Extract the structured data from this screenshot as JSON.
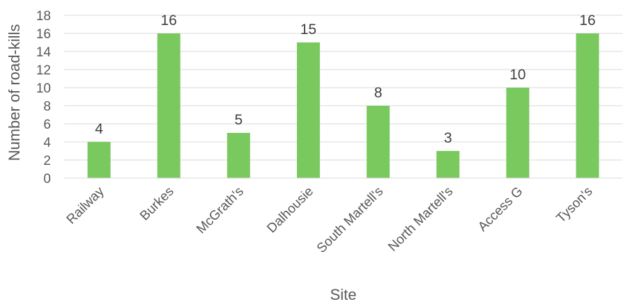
{
  "chart_data": {
    "type": "bar",
    "categories": [
      "Railway",
      "Burkes",
      "McGrath's",
      "Dalhousie",
      "South Martell's",
      "North Martell's",
      "Access G",
      "Tyson's"
    ],
    "values": [
      4,
      16,
      5,
      15,
      8,
      3,
      10,
      16
    ],
    "xlabel": "Site",
    "ylabel": "Number of road-kills",
    "ylim": [
      0,
      18
    ],
    "yticks": [
      0,
      2,
      4,
      6,
      8,
      10,
      12,
      14,
      16,
      18
    ],
    "grid": true,
    "data_labels": true,
    "bar_color": "#7ac95f"
  }
}
